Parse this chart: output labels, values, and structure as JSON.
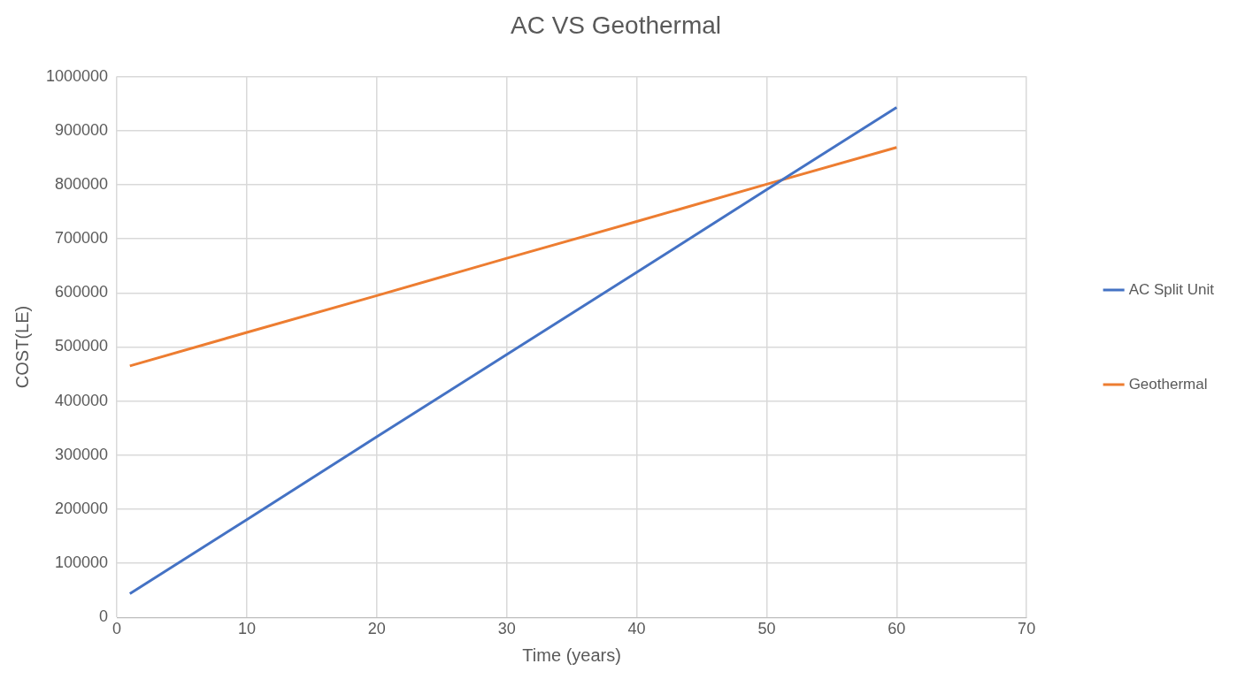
{
  "chart_data": {
    "type": "line",
    "title": "AC VS Geothermal",
    "xlabel": "Time (years)",
    "ylabel": "COST(LE)",
    "xlim": [
      0,
      70
    ],
    "xticks": [
      0,
      10,
      20,
      30,
      40,
      50,
      60,
      70
    ],
    "ylim": [
      0,
      1000000
    ],
    "yticks": [
      0,
      100000,
      200000,
      300000,
      400000,
      500000,
      600000,
      700000,
      800000,
      900000,
      1000000
    ],
    "grid": true,
    "legend": "right",
    "marker": "none",
    "line_style": "solid",
    "series": [
      {
        "name": "AC Split Unit",
        "color": "#4472c4",
        "x": [
          1,
          10,
          20,
          30,
          40,
          50,
          60
        ],
        "values": [
          44000,
          181000,
          334000,
          486000,
          638000,
          791000,
          943000
        ]
      },
      {
        "name": "Geothermal",
        "color": "#ed7d31",
        "x": [
          1,
          10,
          20,
          30,
          40,
          50,
          60
        ],
        "values": [
          465000,
          527000,
          595000,
          664000,
          732000,
          801000,
          869000
        ]
      }
    ]
  }
}
